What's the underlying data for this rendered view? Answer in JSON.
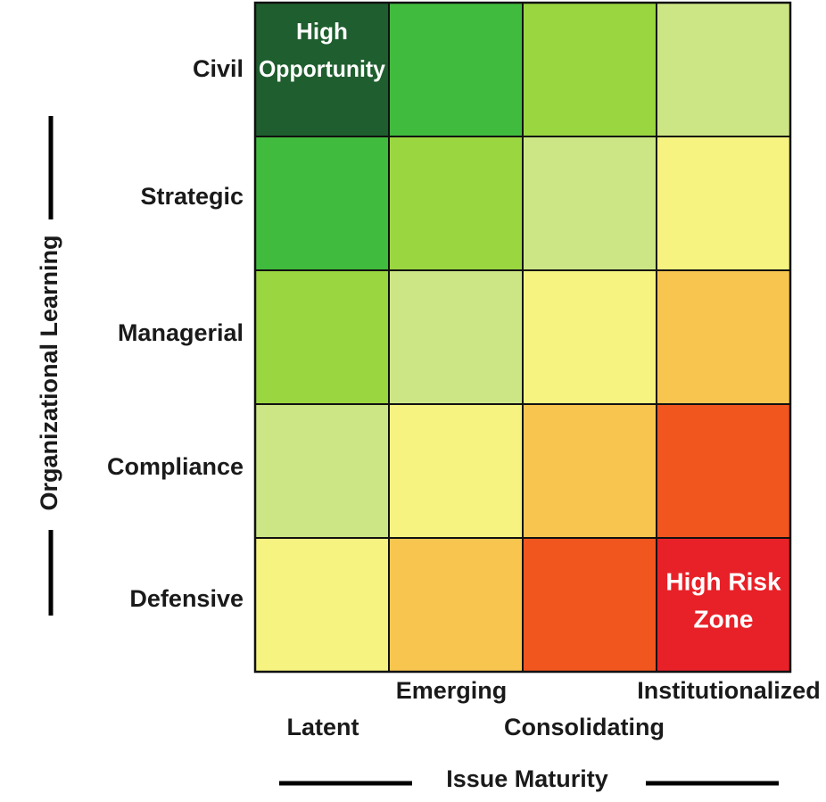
{
  "chart_data": {
    "type": "heatmap",
    "y_axis_title": "Organizational Learning",
    "x_axis_title": "Issue Maturity",
    "rows": [
      "Civil",
      "Strategic",
      "Managerial",
      "Compliance",
      "Defensive"
    ],
    "columns": [
      "Latent",
      "Emerging",
      "Consolidating",
      "Institutionalized"
    ],
    "cell_colors": [
      [
        "#1f5e2e",
        "#41bb3d",
        "#9ad640",
        "#cde685"
      ],
      [
        "#41bb3d",
        "#9ad640",
        "#cde685",
        "#f6f381"
      ],
      [
        "#9ad640",
        "#cde685",
        "#f6f381",
        "#f8c54f"
      ],
      [
        "#cde685",
        "#f6f381",
        "#f8c54f",
        "#f0561e"
      ],
      [
        "#f6f381",
        "#f8c54f",
        "#f0561e",
        "#e82128"
      ]
    ],
    "annotations": [
      {
        "row": 0,
        "col": 0,
        "lines": [
          "High",
          "Opportunity"
        ]
      },
      {
        "row": 4,
        "col": 3,
        "lines": [
          "High Risk",
          "Zone"
        ]
      }
    ]
  }
}
